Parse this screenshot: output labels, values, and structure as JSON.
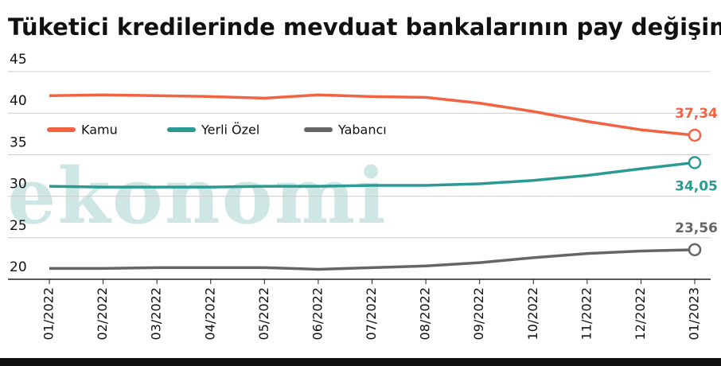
{
  "chart_data": {
    "type": "line",
    "title": "Tüketici kredilerinde mevduat bankalarının pay değişimi",
    "subtitle": "(%)",
    "watermark": "ekonomi",
    "categories": [
      "01/2022",
      "02/2022",
      "03/2022",
      "04/2022",
      "05/2022",
      "06/2022",
      "07/2022",
      "08/2022",
      "09/2022",
      "10/2022",
      "11/2022",
      "12/2022",
      "01/2023"
    ],
    "series": [
      {
        "name": "Kamu",
        "color": "#f26341",
        "values": [
          42.1,
          42.2,
          42.1,
          42.0,
          41.8,
          42.2,
          42.0,
          41.9,
          41.2,
          40.2,
          39.0,
          38.0,
          37.34
        ],
        "value_labels": [
          null,
          null,
          null,
          null,
          null,
          null,
          null,
          null,
          null,
          null,
          null,
          null,
          "37,34"
        ]
      },
      {
        "name": "Yerli Özel",
        "color": "#2a9a93",
        "values": [
          31.2,
          31.1,
          31.1,
          31.1,
          31.2,
          31.2,
          31.3,
          31.3,
          31.5,
          31.9,
          32.5,
          33.3,
          34.05
        ],
        "value_labels": [
          null,
          null,
          null,
          null,
          null,
          null,
          null,
          null,
          null,
          null,
          null,
          null,
          "34,05"
        ]
      },
      {
        "name": "Yabancı",
        "color": "#666666",
        "values": [
          21.3,
          21.3,
          21.4,
          21.4,
          21.4,
          21.2,
          21.4,
          21.6,
          22.0,
          22.6,
          23.1,
          23.4,
          23.56
        ],
        "value_labels": [
          null,
          null,
          null,
          null,
          null,
          null,
          null,
          null,
          null,
          null,
          null,
          null,
          "23,56"
        ]
      }
    ],
    "ylim": [
      20,
      45
    ],
    "yticks": [
      20,
      25,
      30,
      35,
      40,
      45
    ],
    "grid": true,
    "legend": "top-left"
  }
}
